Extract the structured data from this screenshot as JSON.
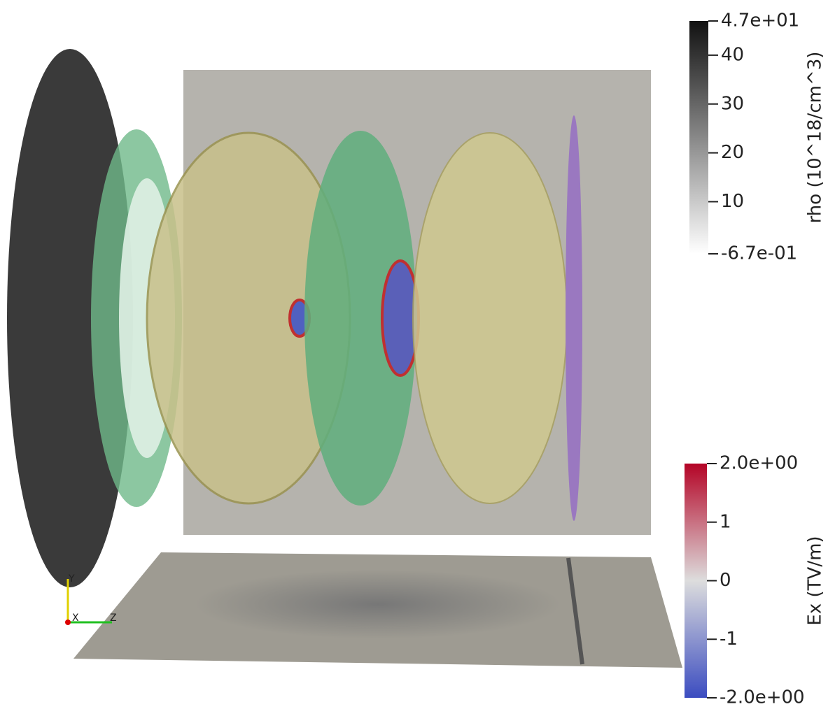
{
  "scene": {
    "axes": {
      "y": "Y",
      "x": "X",
      "z": "Z"
    }
  },
  "colorbars": [
    {
      "title": "rho (10^18/cm^3)",
      "max": {
        "value": 47,
        "label": "4.7e+01"
      },
      "min": {
        "value": -0.67,
        "label": "-6.7e-01"
      },
      "ticks": [
        40,
        30,
        20,
        10
      ]
    },
    {
      "title": "Ex (TV/m)",
      "max": {
        "value": 2,
        "label": "2.0e+00"
      },
      "min": {
        "value": -2,
        "label": "-2.0e+00"
      },
      "ticks": [
        1,
        0,
        -1
      ]
    }
  ]
}
